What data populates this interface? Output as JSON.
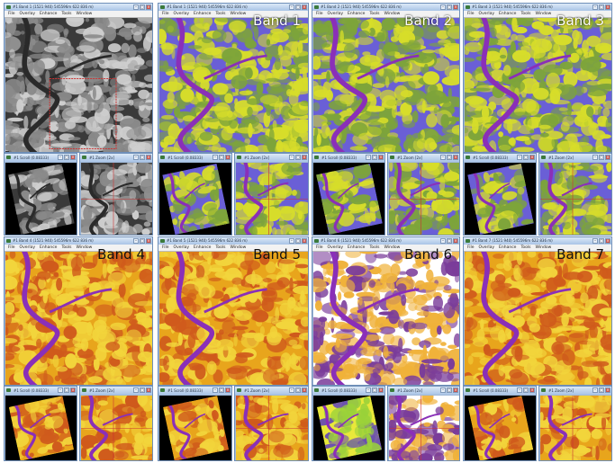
{
  "main_windows": [
    {
      "id": "pan",
      "title": "#1 Band 1 (1521 940) 545596m 622 836 m)",
      "label": "",
      "menu": [
        "File",
        "Overlay",
        "Enhance",
        "Tools",
        "Window"
      ],
      "theme": "gray"
    },
    {
      "id": "b1",
      "title": "#1 Band 1 (1521 940) 545596m 622 836 m)",
      "label": "Band 1",
      "menu": [
        "File",
        "Overlay",
        "Enhance",
        "Tools",
        "Window"
      ],
      "theme": "blueyellow"
    },
    {
      "id": "b2",
      "title": "#1 Band 2 (1521 940) 545596m 622 836 m)",
      "label": "Band 2",
      "menu": [
        "File",
        "Overlay",
        "Enhance",
        "Tools",
        "Window"
      ],
      "theme": "blueyellow"
    },
    {
      "id": "b3",
      "title": "#1 Band 3 (1521 940) 545596m 622 836 m)",
      "label": "Band 3",
      "menu": [
        "File",
        "Overlay",
        "Enhance",
        "Tools",
        "Window"
      ],
      "theme": "blueyellow"
    },
    {
      "id": "b4",
      "title": "#1 Band 4 (1521 940) 545596m 622 836 m)",
      "label": "Band 4",
      "menu": [
        "File",
        "Overlay",
        "Enhance",
        "Tools",
        "Window"
      ],
      "theme": "orange"
    },
    {
      "id": "b5",
      "title": "#1 Band 5 (1521 940) 545596m 622 836 m)",
      "label": "Band 5",
      "menu": [
        "File",
        "Overlay",
        "Enhance",
        "Tools",
        "Window"
      ],
      "theme": "orange"
    },
    {
      "id": "b6",
      "title": "#1 Band 6 (1521 940) 545596m 622 836 m)",
      "label": "Band 6",
      "menu": [
        "File",
        "Overlay",
        "Enhance",
        "Tools",
        "Window"
      ],
      "theme": "white"
    },
    {
      "id": "b7",
      "title": "#1 Band 7 (1521 940) 545596m 622 836 m)",
      "label": "Band 7",
      "menu": [
        "File",
        "Overlay",
        "Enhance",
        "Tools",
        "Window"
      ],
      "theme": "orange"
    }
  ],
  "sub_windows": [
    {
      "title": "#1 Scroll (0.08333)",
      "kind": "scroll",
      "theme": "gray"
    },
    {
      "title": "#1 Zoom [2x]",
      "kind": "zoom",
      "theme": "gray"
    },
    {
      "title": "#1 Scroll (0.08333)",
      "kind": "scroll",
      "theme": "blueyellow"
    },
    {
      "title": "#1 Zoom [2x]",
      "kind": "zoom",
      "theme": "blueyellow"
    },
    {
      "title": "#1 Scroll (0.08333)",
      "kind": "scroll",
      "theme": "blueyellow"
    },
    {
      "title": "#1 Zoom [2x]",
      "kind": "zoom",
      "theme": "blueyellow"
    },
    {
      "title": "#1 Scroll (0.08333)",
      "kind": "scroll",
      "theme": "blueyellow"
    },
    {
      "title": "#1 Zoom [2x]",
      "kind": "zoom",
      "theme": "blueyellow"
    },
    {
      "title": "#1 Scroll (0.08333)",
      "kind": "scroll",
      "theme": "orange"
    },
    {
      "title": "#1 Zoom [2x]",
      "kind": "zoom",
      "theme": "orange"
    },
    {
      "title": "#1 Scroll (0.08333)",
      "kind": "scroll",
      "theme": "orange"
    },
    {
      "title": "#1 Zoom [2x]",
      "kind": "zoom",
      "theme": "orange"
    },
    {
      "title": "#1 Scroll (0.08333)",
      "kind": "scroll",
      "theme": "green"
    },
    {
      "title": "#1 Zoom [2x]",
      "kind": "zoom",
      "theme": "white"
    },
    {
      "title": "#1 Scroll (0.08333)",
      "kind": "scroll",
      "theme": "orange"
    },
    {
      "title": "#1 Zoom [2x]",
      "kind": "zoom",
      "theme": "orange"
    }
  ],
  "colors": {
    "gray": [
      "#3a3a3a",
      "#8a8a8a",
      "#cfcfcf"
    ],
    "blueyellow": [
      "#6a5fd6",
      "#d7dd2a",
      "#7da43a"
    ],
    "orange": [
      "#e8a51c",
      "#f2d53c",
      "#cf5a1c"
    ],
    "white": [
      "#ffffff",
      "#f0b23a",
      "#7a3c9a"
    ],
    "green": [
      "#e8e83a",
      "#9ad13a",
      "#6a4fb0"
    ],
    "river": "#8a2fb8",
    "river_gray": "#2a2a2a"
  }
}
